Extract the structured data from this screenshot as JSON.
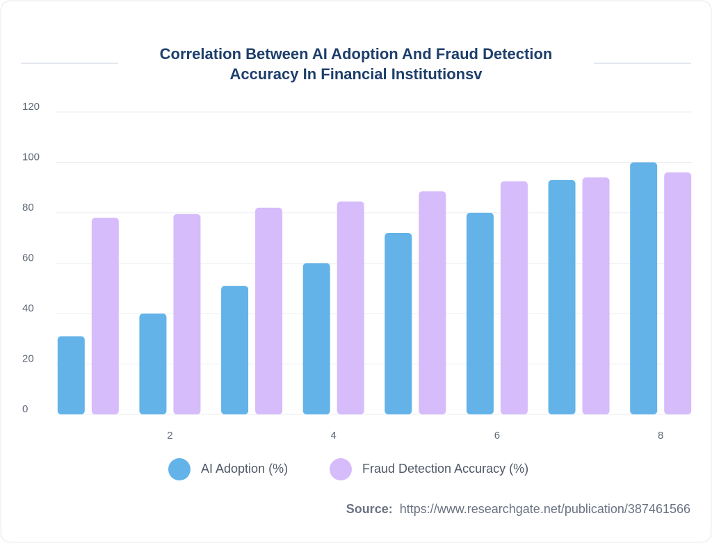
{
  "chart_data": {
    "type": "bar",
    "title_lines": [
      "Correlation Between AI Adoption And Fraud Detection",
      "Accuracy In Financial Institutionsv"
    ],
    "categories": [
      null,
      "2",
      null,
      "4",
      null,
      "6",
      null,
      "8"
    ],
    "series": [
      {
        "name": "AI Adoption (%)",
        "color": "#63b3e9",
        "values": [
          31,
          40,
          51,
          60,
          72,
          80,
          93,
          100
        ]
      },
      {
        "name": "Fraud Detection Accuracy (%)",
        "color": "#d6bcfa",
        "values": [
          78,
          79.5,
          82,
          84.5,
          88.5,
          92.5,
          94,
          96
        ]
      }
    ],
    "ylim": [
      0,
      120
    ],
    "yticks": [
      0,
      20,
      40,
      60,
      80,
      100,
      120
    ],
    "grid": true,
    "source_label": "Source:",
    "source_url": "https://www.researchgate.net/publication/387461566"
  }
}
